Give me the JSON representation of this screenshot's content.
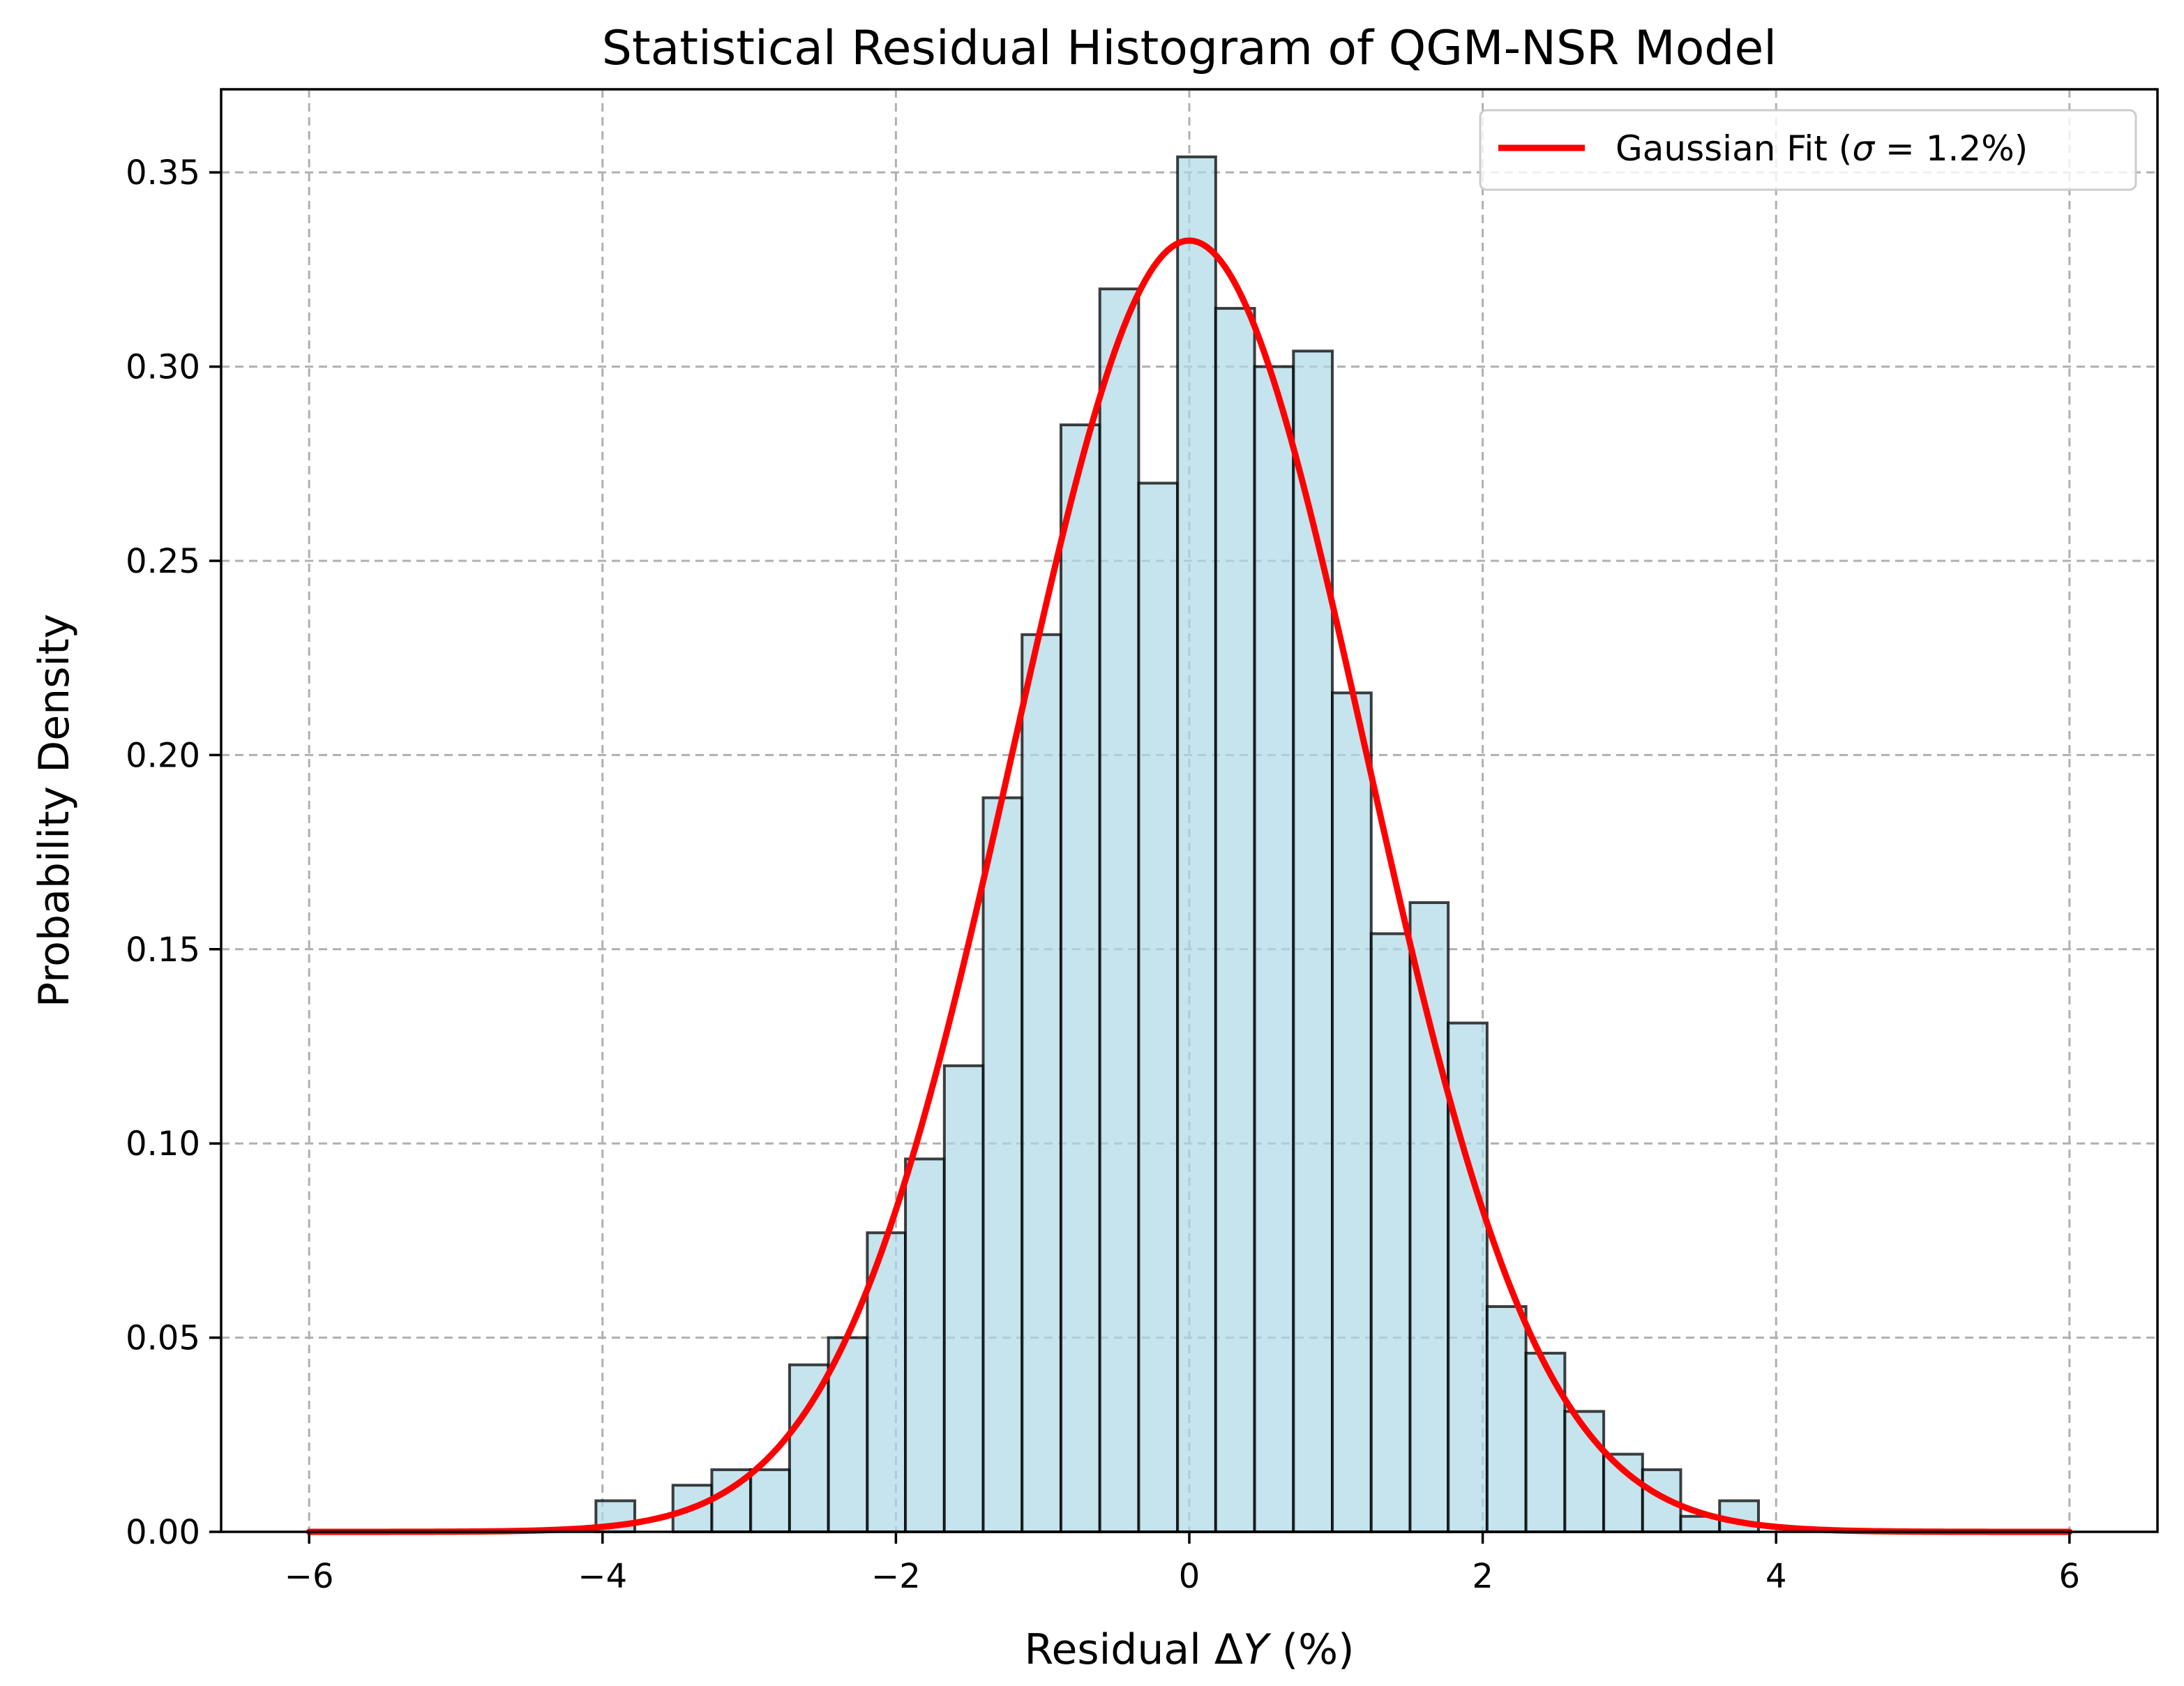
{
  "chart_data": {
    "type": "bar",
    "title": "Statistical Residual Histogram of QGM-NSR Model",
    "xlabel_prefix": "Residual Δ",
    "xlabel_var": "Y",
    "xlabel_suffix": " (%)",
    "ylabel": "Probability Density",
    "xlim": [
      -6.6,
      6.6
    ],
    "ylim": [
      0,
      0.3714
    ],
    "xticks": [
      -6,
      -4,
      -2,
      0,
      2,
      4,
      6
    ],
    "xtick_labels": [
      "−6",
      "−4",
      "−2",
      "0",
      "2",
      "4",
      "6"
    ],
    "yticks": [
      0,
      0.05,
      0.1,
      0.15,
      0.2,
      0.25,
      0.3,
      0.35
    ],
    "ytick_labels": [
      "0.00",
      "0.05",
      "0.10",
      "0.15",
      "0.20",
      "0.25",
      "0.30",
      "0.35"
    ],
    "grid": true,
    "bins": {
      "edges": [
        -4.045,
        -3.78,
        -3.52,
        -3.255,
        -2.99,
        -2.725,
        -2.46,
        -2.195,
        -1.935,
        -1.67,
        -1.405,
        -1.14,
        -0.875,
        -0.61,
        -0.345,
        -0.08,
        0.18,
        0.445,
        0.71,
        0.975,
        1.24,
        1.505,
        1.765,
        2.03,
        2.295,
        2.56,
        2.825,
        3.09,
        3.35,
        3.615,
        3.88
      ],
      "values": [
        0.008,
        0.0,
        0.012,
        0.016,
        0.016,
        0.043,
        0.05,
        0.077,
        0.096,
        0.12,
        0.189,
        0.231,
        0.285,
        0.32,
        0.27,
        0.354,
        0.315,
        0.3,
        0.304,
        0.216,
        0.154,
        0.162,
        0.131,
        0.058,
        0.046,
        0.031,
        0.02,
        0.016,
        0.004,
        0.008
      ]
    },
    "bar_color": "#add8e6",
    "series": [
      {
        "name": "Gaussian Fit (σ = 1.2%)",
        "type": "line",
        "mean": 0.0,
        "sigma": 1.2,
        "x_range": [
          -6,
          6
        ],
        "color": "#ff0000"
      }
    ],
    "legend": {
      "placement": "top-right",
      "label_prefix": "Gaussian Fit (",
      "label_sigma": "σ",
      "label_suffix": " = 1.2%)"
    }
  }
}
